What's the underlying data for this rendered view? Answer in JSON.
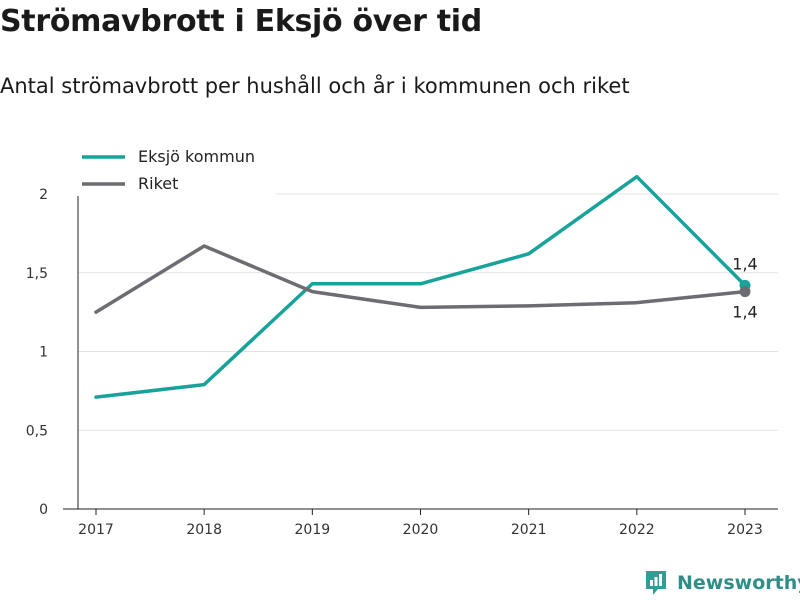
{
  "title": "Strömavbrott i Eksjö över tid",
  "subtitle": "Antal strömavbrott per hushåll och år i kommunen och riket",
  "brand": {
    "name": "Newsworthy",
    "icon": "newsworthy-logo-icon",
    "color": "#2f9e94"
  },
  "chart_data": {
    "type": "line",
    "x": [
      "2017",
      "2018",
      "2019",
      "2020",
      "2021",
      "2022",
      "2023"
    ],
    "ylim": [
      0,
      2.2
    ],
    "yticks": [
      0,
      0.5,
      1,
      1.5,
      2
    ],
    "ytick_labels": [
      "0",
      "0,5",
      "1",
      "1,5",
      "2"
    ],
    "grid": "horizontal",
    "legend_position": "top-left",
    "series": [
      {
        "name": "Eksjö kommun",
        "color": "#17a39a",
        "values": [
          0.71,
          0.79,
          1.43,
          1.43,
          1.62,
          2.11,
          1.42
        ],
        "end_label": "1,4"
      },
      {
        "name": "Riket",
        "color": "#6e6c72",
        "values": [
          1.25,
          1.67,
          1.38,
          1.28,
          1.29,
          1.31,
          1.38
        ],
        "end_label": "1,4"
      }
    ]
  }
}
